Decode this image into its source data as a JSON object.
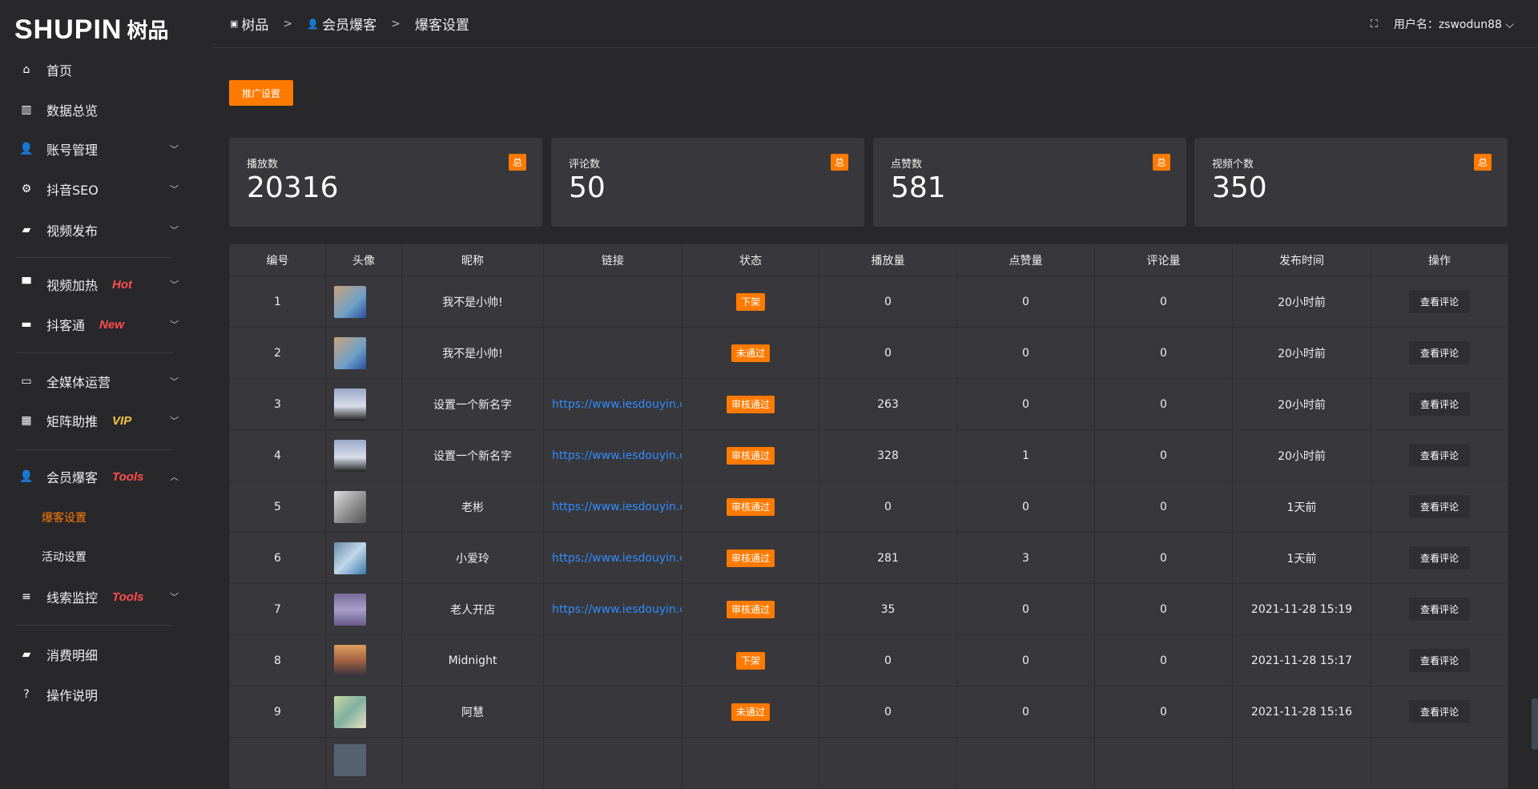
{
  "logo": {
    "en": "SHUPIN",
    "cn": "树品"
  },
  "sidebar": {
    "items": [
      {
        "label": "首页",
        "icon": "home-icon"
      },
      {
        "label": "数据总览",
        "icon": "bar-chart-icon"
      },
      {
        "label": "账号管理",
        "icon": "user-icon"
      },
      {
        "label": "抖音SEO",
        "icon": "gear-icon"
      },
      {
        "label": "视频发布",
        "icon": "camera-icon"
      },
      {
        "label": "视频加热",
        "icon": "flag-icon",
        "tag": "Hot"
      },
      {
        "label": "抖客通",
        "icon": "chat-icon",
        "tag": "New"
      },
      {
        "label": "全媒体运营",
        "icon": "monitor-icon"
      },
      {
        "label": "矩阵助推",
        "icon": "grid-icon",
        "tag": "VIP"
      },
      {
        "label": "会员爆客",
        "icon": "user-icon",
        "tag": "Tools"
      },
      {
        "label": "线索监控",
        "icon": "sliders-icon",
        "tag": "Tools"
      },
      {
        "label": "消费明细",
        "icon": "wallet-icon"
      },
      {
        "label": "操作说明",
        "icon": "question-icon"
      }
    ],
    "sub": [
      "爆客设置",
      "活动设置"
    ]
  },
  "header": {
    "crumbs": [
      "树品",
      "会员爆客",
      "爆客设置"
    ],
    "user": "用户名：zswodun88"
  },
  "promo_button": "推广设置",
  "colors": {
    "accent": "#ff7a00",
    "link": "#2f8cff",
    "hot": "#ff4d4f",
    "vip": "#f5c542"
  },
  "cards": [
    {
      "label": "播放数",
      "value": "20316",
      "badge": "总"
    },
    {
      "label": "评论数",
      "value": "50",
      "badge": "总"
    },
    {
      "label": "点赞数",
      "value": "581",
      "badge": "总"
    },
    {
      "label": "视频个数",
      "value": "350",
      "badge": "总"
    }
  ],
  "table": {
    "headers": [
      "编号",
      "头像",
      "昵称",
      "链接",
      "状态",
      "播放量",
      "点赞量",
      "评论量",
      "发布时间",
      "操作"
    ],
    "action": "查看评论",
    "rows": [
      {
        "id": "1",
        "name": "我不是小帅!",
        "link": "",
        "status": "下架",
        "plays": "0",
        "likes": "0",
        "comments": "0",
        "time": "20小时前"
      },
      {
        "id": "2",
        "name": "我不是小帅!",
        "link": "",
        "status": "未通过",
        "plays": "0",
        "likes": "0",
        "comments": "0",
        "time": "20小时前"
      },
      {
        "id": "3",
        "name": "设置一个新名字",
        "link": "https://www.iesdouyin.c",
        "status": "审核通过",
        "plays": "263",
        "likes": "0",
        "comments": "0",
        "time": "20小时前"
      },
      {
        "id": "4",
        "name": "设置一个新名字",
        "link": "https://www.iesdouyin.c",
        "status": "审核通过",
        "plays": "328",
        "likes": "1",
        "comments": "0",
        "time": "20小时前"
      },
      {
        "id": "5",
        "name": "老彬",
        "link": "https://www.iesdouyin.c",
        "status": "审核通过",
        "plays": "0",
        "likes": "0",
        "comments": "0",
        "time": "1天前"
      },
      {
        "id": "6",
        "name": "小爱玲",
        "link": "https://www.iesdouyin.c",
        "status": "审核通过",
        "plays": "281",
        "likes": "3",
        "comments": "0",
        "time": "1天前"
      },
      {
        "id": "7",
        "name": "老人开店",
        "link": "https://www.iesdouyin.c",
        "status": "审核通过",
        "plays": "35",
        "likes": "0",
        "comments": "0",
        "time": "2021-11-28 15:19"
      },
      {
        "id": "8",
        "name": "Midnight",
        "link": "",
        "status": "下架",
        "plays": "0",
        "likes": "0",
        "comments": "0",
        "time": "2021-11-28 15:17"
      },
      {
        "id": "9",
        "name": "阿慧",
        "link": "",
        "status": "未通过",
        "plays": "0",
        "likes": "0",
        "comments": "0",
        "time": "2021-11-28 15:16"
      }
    ]
  }
}
